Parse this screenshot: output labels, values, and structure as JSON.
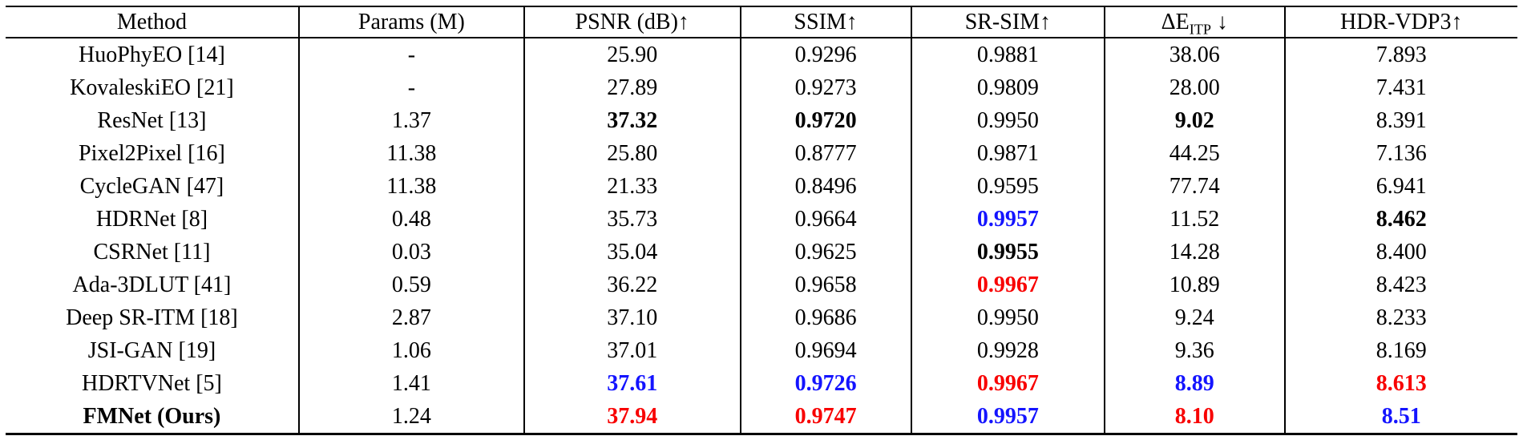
{
  "colors": {
    "red": "#f80000",
    "blue": "#1414ff",
    "black": "#000000"
  },
  "table": {
    "headers": [
      {
        "text": "Method"
      },
      {
        "text": "Params (M)"
      },
      {
        "text": "PSNR (dB)↑"
      },
      {
        "text": "SSIM↑"
      },
      {
        "text": "SR-SIM↑"
      },
      {
        "text": "ΔE",
        "sub": "ITP",
        "post": " ↓"
      },
      {
        "text": "HDR-VDP3↑"
      }
    ],
    "rows": [
      {
        "cells": [
          {
            "text": "HuoPhyEO [14]"
          },
          {
            "text": "-"
          },
          {
            "text": "25.90"
          },
          {
            "text": "0.9296"
          },
          {
            "text": "0.9881"
          },
          {
            "text": "38.06"
          },
          {
            "text": "7.893"
          }
        ]
      },
      {
        "cells": [
          {
            "text": "KovaleskiEO [21]"
          },
          {
            "text": "-"
          },
          {
            "text": "27.89"
          },
          {
            "text": "0.9273"
          },
          {
            "text": "0.9809"
          },
          {
            "text": "28.00"
          },
          {
            "text": "7.431"
          }
        ]
      },
      {
        "cells": [
          {
            "text": "ResNet [13]"
          },
          {
            "text": "1.37"
          },
          {
            "text": "37.32",
            "bold": true
          },
          {
            "text": "0.9720",
            "bold": true
          },
          {
            "text": "0.9950"
          },
          {
            "text": "9.02",
            "bold": true
          },
          {
            "text": "8.391"
          }
        ]
      },
      {
        "cells": [
          {
            "text": "Pixel2Pixel [16]"
          },
          {
            "text": "11.38"
          },
          {
            "text": "25.80"
          },
          {
            "text": "0.8777"
          },
          {
            "text": "0.9871"
          },
          {
            "text": "44.25"
          },
          {
            "text": "7.136"
          }
        ]
      },
      {
        "cells": [
          {
            "text": "CycleGAN [47]"
          },
          {
            "text": "11.38"
          },
          {
            "text": "21.33"
          },
          {
            "text": "0.8496"
          },
          {
            "text": "0.9595"
          },
          {
            "text": "77.74"
          },
          {
            "text": "6.941"
          }
        ]
      },
      {
        "cells": [
          {
            "text": "HDRNet [8]"
          },
          {
            "text": "0.48"
          },
          {
            "text": "35.73"
          },
          {
            "text": "0.9664"
          },
          {
            "text": "0.9957",
            "bold": true,
            "color": "blue"
          },
          {
            "text": "11.52"
          },
          {
            "text": "8.462",
            "bold": true
          }
        ]
      },
      {
        "cells": [
          {
            "text": "CSRNet [11]"
          },
          {
            "text": "0.03"
          },
          {
            "text": "35.04"
          },
          {
            "text": "0.9625"
          },
          {
            "text": "0.9955",
            "bold": true
          },
          {
            "text": "14.28"
          },
          {
            "text": "8.400"
          }
        ]
      },
      {
        "cells": [
          {
            "text": "Ada-3DLUT [41]"
          },
          {
            "text": "0.59"
          },
          {
            "text": "36.22"
          },
          {
            "text": "0.9658"
          },
          {
            "text": "0.9967",
            "bold": true,
            "color": "red"
          },
          {
            "text": "10.89"
          },
          {
            "text": "8.423"
          }
        ]
      },
      {
        "cells": [
          {
            "text": "Deep SR-ITM [18]"
          },
          {
            "text": "2.87"
          },
          {
            "text": "37.10"
          },
          {
            "text": "0.9686"
          },
          {
            "text": "0.9950"
          },
          {
            "text": "9.24"
          },
          {
            "text": "8.233"
          }
        ]
      },
      {
        "cells": [
          {
            "text": "JSI-GAN [19]"
          },
          {
            "text": "1.06"
          },
          {
            "text": "37.01"
          },
          {
            "text": "0.9694"
          },
          {
            "text": "0.9928"
          },
          {
            "text": "9.36"
          },
          {
            "text": "8.169"
          }
        ]
      },
      {
        "cells": [
          {
            "text": "HDRTVNet [5]"
          },
          {
            "text": "1.41"
          },
          {
            "text": "37.61",
            "bold": true,
            "color": "blue"
          },
          {
            "text": "0.9726",
            "bold": true,
            "color": "blue"
          },
          {
            "text": "0.9967",
            "bold": true,
            "color": "red"
          },
          {
            "text": "8.89",
            "bold": true,
            "color": "blue"
          },
          {
            "text": "8.613",
            "bold": true,
            "color": "red"
          }
        ]
      },
      {
        "cells": [
          {
            "text": "FMNet (Ours)",
            "bold": true
          },
          {
            "text": "1.24"
          },
          {
            "text": "37.94",
            "bold": true,
            "color": "red"
          },
          {
            "text": "0.9747",
            "bold": true,
            "color": "red"
          },
          {
            "text": "0.9957",
            "bold": true,
            "color": "blue"
          },
          {
            "text": "8.10",
            "bold": true,
            "color": "red"
          },
          {
            "text": "8.51",
            "bold": true,
            "color": "blue"
          }
        ]
      }
    ]
  }
}
